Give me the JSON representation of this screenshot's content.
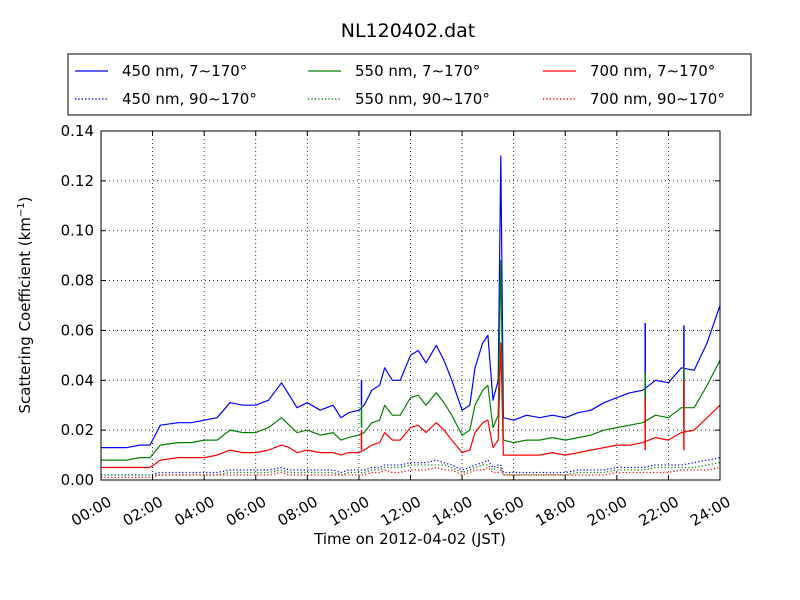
{
  "chart_data": {
    "type": "line",
    "title": "NL120402.dat",
    "xlabel": "Time on 2012-04-02 (JST)",
    "ylabel": "Scattering Coefficient (km",
    "ylabel_sup": "−1",
    "ylabel_close": ")",
    "xlim": [
      0,
      24
    ],
    "ylim": [
      0,
      0.14
    ],
    "x_unit": "hours",
    "grid": true,
    "legend_position": "top",
    "x_ticks": [
      {
        "value": 0,
        "label": "00:00"
      },
      {
        "value": 2,
        "label": "02:00"
      },
      {
        "value": 4,
        "label": "04:00"
      },
      {
        "value": 6,
        "label": "06:00"
      },
      {
        "value": 8,
        "label": "08:00"
      },
      {
        "value": 10,
        "label": "10:00"
      },
      {
        "value": 12,
        "label": "12:00"
      },
      {
        "value": 14,
        "label": "14:00"
      },
      {
        "value": 16,
        "label": "16:00"
      },
      {
        "value": 18,
        "label": "18:00"
      },
      {
        "value": 20,
        "label": "20:00"
      },
      {
        "value": 22,
        "label": "22:00"
      },
      {
        "value": 24,
        "label": "24:00"
      }
    ],
    "y_ticks": [
      {
        "value": 0.0,
        "label": "0.00"
      },
      {
        "value": 0.02,
        "label": "0.02"
      },
      {
        "value": 0.04,
        "label": "0.04"
      },
      {
        "value": 0.06,
        "label": "0.06"
      },
      {
        "value": 0.08,
        "label": "0.08"
      },
      {
        "value": 0.1,
        "label": "0.10"
      },
      {
        "value": 0.12,
        "label": "0.12"
      },
      {
        "value": 0.14,
        "label": "0.14"
      }
    ],
    "x": [
      0,
      0.5,
      1,
      1.5,
      1.9,
      2.3,
      3,
      3.5,
      4,
      4.5,
      5,
      5.5,
      6,
      6.5,
      7,
      7.3,
      7.6,
      8,
      8.5,
      9,
      9.3,
      9.6,
      10,
      10.2,
      10.5,
      10.8,
      11,
      11.3,
      11.6,
      12,
      12.3,
      12.6,
      13,
      13.3,
      13.6,
      14,
      14.3,
      14.5,
      14.8,
      15,
      15.2,
      15.4,
      15.5,
      15.6,
      16,
      16.5,
      17,
      17.5,
      18,
      18.5,
      19,
      19.5,
      20,
      20.5,
      21,
      21.5,
      22,
      22.5,
      23,
      23.5,
      24
    ],
    "series": [
      {
        "name": "450 nm, 7∼170°",
        "color": "#0000ff",
        "style": "solid",
        "values": [
          0.013,
          0.013,
          0.013,
          0.014,
          0.014,
          0.022,
          0.023,
          0.023,
          0.024,
          0.025,
          0.031,
          0.03,
          0.03,
          0.032,
          0.039,
          0.034,
          0.029,
          0.031,
          0.028,
          0.03,
          0.025,
          0.027,
          0.028,
          0.03,
          0.036,
          0.038,
          0.045,
          0.04,
          0.04,
          0.05,
          0.052,
          0.047,
          0.054,
          0.048,
          0.04,
          0.028,
          0.03,
          0.045,
          0.055,
          0.058,
          0.032,
          0.04,
          0.13,
          0.025,
          0.024,
          0.026,
          0.025,
          0.026,
          0.025,
          0.027,
          0.028,
          0.031,
          0.033,
          0.035,
          0.036,
          0.04,
          0.039,
          0.045,
          0.044,
          0.055,
          0.07
        ]
      },
      {
        "name": "450 nm, 90∼170°",
        "color": "#0000ff",
        "style": "dotted",
        "values": [
          0.002,
          0.002,
          0.002,
          0.002,
          0.002,
          0.003,
          0.003,
          0.003,
          0.003,
          0.003,
          0.004,
          0.004,
          0.004,
          0.004,
          0.005,
          0.004,
          0.004,
          0.004,
          0.004,
          0.004,
          0.003,
          0.004,
          0.004,
          0.004,
          0.005,
          0.005,
          0.006,
          0.006,
          0.006,
          0.007,
          0.007,
          0.007,
          0.008,
          0.007,
          0.006,
          0.004,
          0.005,
          0.006,
          0.007,
          0.008,
          0.005,
          0.006,
          0.006,
          0.003,
          0.003,
          0.003,
          0.003,
          0.003,
          0.003,
          0.004,
          0.004,
          0.004,
          0.005,
          0.005,
          0.005,
          0.006,
          0.006,
          0.006,
          0.007,
          0.008,
          0.009
        ]
      },
      {
        "name": "550 nm, 7∼170°",
        "color": "#008000",
        "style": "solid",
        "values": [
          0.008,
          0.008,
          0.008,
          0.009,
          0.009,
          0.014,
          0.015,
          0.015,
          0.016,
          0.016,
          0.02,
          0.019,
          0.019,
          0.021,
          0.025,
          0.022,
          0.019,
          0.02,
          0.018,
          0.019,
          0.016,
          0.017,
          0.018,
          0.019,
          0.023,
          0.024,
          0.03,
          0.026,
          0.026,
          0.033,
          0.034,
          0.03,
          0.035,
          0.031,
          0.026,
          0.018,
          0.02,
          0.03,
          0.036,
          0.038,
          0.021,
          0.026,
          0.088,
          0.016,
          0.015,
          0.016,
          0.016,
          0.017,
          0.016,
          0.017,
          0.018,
          0.02,
          0.021,
          0.022,
          0.023,
          0.026,
          0.025,
          0.029,
          0.029,
          0.038,
          0.048
        ]
      },
      {
        "name": "550 nm, 90∼170°",
        "color": "#008000",
        "style": "dotted",
        "values": [
          0.002,
          0.002,
          0.002,
          0.002,
          0.002,
          0.002,
          0.002,
          0.002,
          0.002,
          0.002,
          0.003,
          0.003,
          0.003,
          0.003,
          0.004,
          0.003,
          0.003,
          0.003,
          0.003,
          0.003,
          0.002,
          0.003,
          0.003,
          0.003,
          0.004,
          0.004,
          0.005,
          0.005,
          0.005,
          0.006,
          0.006,
          0.006,
          0.006,
          0.006,
          0.005,
          0.003,
          0.004,
          0.005,
          0.006,
          0.006,
          0.004,
          0.005,
          0.005,
          0.002,
          0.002,
          0.002,
          0.002,
          0.002,
          0.002,
          0.003,
          0.003,
          0.003,
          0.004,
          0.004,
          0.004,
          0.005,
          0.005,
          0.005,
          0.005,
          0.006,
          0.007
        ]
      },
      {
        "name": "700 nm, 7∼170°",
        "color": "#ff0000",
        "style": "solid",
        "values": [
          0.005,
          0.005,
          0.005,
          0.005,
          0.005,
          0.008,
          0.009,
          0.009,
          0.009,
          0.01,
          0.012,
          0.011,
          0.011,
          0.012,
          0.014,
          0.013,
          0.011,
          0.012,
          0.011,
          0.011,
          0.01,
          0.011,
          0.011,
          0.012,
          0.014,
          0.015,
          0.019,
          0.016,
          0.016,
          0.021,
          0.022,
          0.019,
          0.023,
          0.02,
          0.016,
          0.011,
          0.012,
          0.019,
          0.023,
          0.024,
          0.013,
          0.016,
          0.055,
          0.01,
          0.01,
          0.01,
          0.01,
          0.011,
          0.01,
          0.011,
          0.012,
          0.013,
          0.014,
          0.014,
          0.015,
          0.017,
          0.016,
          0.019,
          0.02,
          0.025,
          0.03
        ]
      },
      {
        "name": "700 nm, 90∼170°",
        "color": "#ff0000",
        "style": "dotted",
        "values": [
          0.001,
          0.001,
          0.001,
          0.001,
          0.001,
          0.002,
          0.002,
          0.002,
          0.002,
          0.002,
          0.002,
          0.002,
          0.002,
          0.002,
          0.003,
          0.002,
          0.002,
          0.002,
          0.002,
          0.002,
          0.002,
          0.002,
          0.002,
          0.002,
          0.003,
          0.003,
          0.004,
          0.003,
          0.003,
          0.004,
          0.004,
          0.004,
          0.005,
          0.004,
          0.004,
          0.002,
          0.003,
          0.004,
          0.004,
          0.005,
          0.003,
          0.003,
          0.004,
          0.002,
          0.002,
          0.002,
          0.002,
          0.002,
          0.002,
          0.002,
          0.002,
          0.002,
          0.003,
          0.003,
          0.003,
          0.003,
          0.003,
          0.004,
          0.004,
          0.004,
          0.005
        ]
      }
    ],
    "spikes": [
      {
        "x": 10.1,
        "values": [
          0.04,
          0.03,
          0.02
        ]
      },
      {
        "x": 21.1,
        "values": [
          0.063,
          0.043,
          0.033
        ]
      },
      {
        "x": 22.6,
        "values": [
          0.062,
          0.045,
          0.04
        ]
      }
    ]
  }
}
